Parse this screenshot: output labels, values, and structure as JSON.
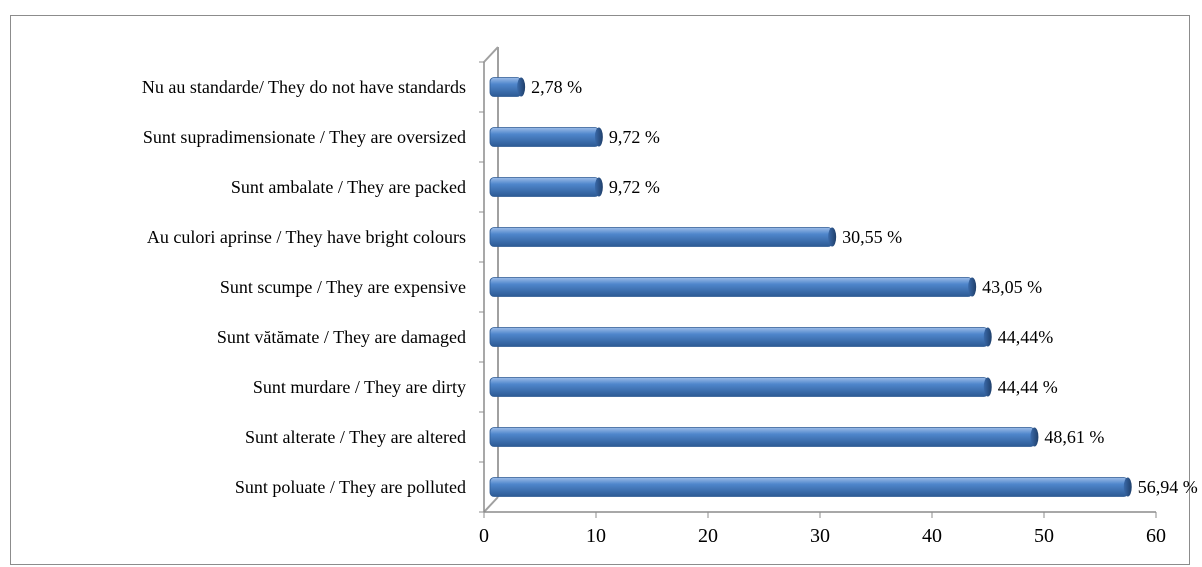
{
  "chart_data": {
    "type": "bar",
    "orientation": "horizontal",
    "categories": [
      "Nu au standarde/ They do not have standards",
      "Sunt supradimensionate / They are oversized",
      "Sunt ambalate / They are packed",
      "Au culori aprinse / They have bright colours",
      "Sunt scumpe / They are expensive",
      "Sunt vătămate / They are damaged",
      "Sunt murdare / They are dirty",
      "Sunt alterate / They are altered",
      "Sunt poluate / They are polluted"
    ],
    "values": [
      2.78,
      9.72,
      9.72,
      30.55,
      43.05,
      44.44,
      44.44,
      48.61,
      56.94
    ],
    "value_labels": [
      "2,78 %",
      "9,72 %",
      "9,72 %",
      "30,55 %",
      "43,05 %",
      "44,44%",
      "44,44 %",
      "48,61 %",
      "56,94 %"
    ],
    "xlim": [
      0,
      60
    ],
    "x_ticks": [
      "0",
      "10",
      "20",
      "30",
      "40",
      "50",
      "60"
    ],
    "grid": false,
    "bar_color": "#4a7ebb"
  }
}
